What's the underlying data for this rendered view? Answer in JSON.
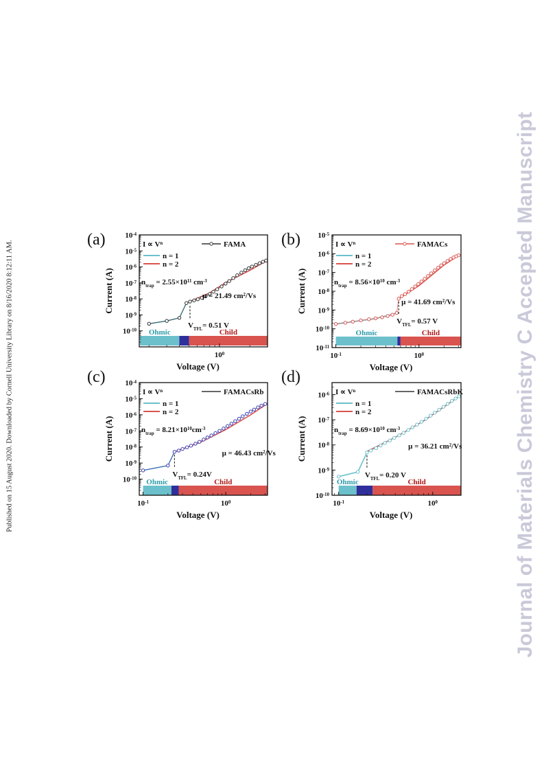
{
  "side_note": "Published on 15 August 2020. Downloaded by Cornell University Library on 8/16/2020 8:12:11 AM.",
  "watermark": "Journal of Materials Chemistry C Accepted Manuscript",
  "common": {
    "law_label": "I ∝ V",
    "law_exp": "n",
    "n1_label": "n = 1",
    "n2_label": "n = 2",
    "ylabel": "Current (A)",
    "xlabel": "Voltage (V)",
    "ohmic_label": "Ohmic",
    "tfl_label": "TFL",
    "child_label": "Child",
    "colors": {
      "n1": "#6cc0cc",
      "n2": "#d9534f",
      "ohmic": "#6cc0cc",
      "tfl": "#2f2f9c",
      "child": "#d9534f"
    }
  },
  "chart_data": [
    {
      "panel": "(a)",
      "type": "line",
      "legend": "FAMA",
      "legend_color": "#333333",
      "marker_color": "#333333",
      "xscale": "log",
      "yscale": "log",
      "xlim": [
        0.16,
        3.0
      ],
      "ylim": [
        1e-11,
        0.0001
      ],
      "xticks": [
        {
          "v": 1,
          "b": "10",
          "e": "0"
        }
      ],
      "yticks": [
        {
          "v": 0.0001,
          "b": "10",
          "e": "-4"
        },
        {
          "v": 1e-05,
          "b": "10",
          "e": "-5"
        },
        {
          "v": 1e-06,
          "b": "10",
          "e": "-6"
        },
        {
          "v": 1e-07,
          "b": "10",
          "e": "-7"
        },
        {
          "v": 1e-08,
          "b": "10",
          "e": "-8"
        },
        {
          "v": 1e-09,
          "b": "10",
          "e": "-9"
        },
        {
          "v": 1e-10,
          "b": "10",
          "e": "-10"
        }
      ],
      "regions": {
        "ohmic": [
          0.16,
          0.4
        ],
        "tfl": [
          0.4,
          0.5
        ],
        "child": [
          0.5,
          3.0
        ]
      },
      "ntrap": {
        "pre": "n",
        "sub": "trap",
        "mid": " = 2.55×10",
        "sup": "11",
        "post": " cm",
        "sup2": "-3"
      },
      "mu": {
        "pre": "μ = 21.49 cm",
        "sup": "2",
        "post": "/Vs"
      },
      "vtfl": {
        "pre": "V",
        "sub": "TFL",
        "post": "= 0.51 V",
        "x": 0.51
      },
      "series": [
        {
          "fit": "n1",
          "x": [
            0.2,
            0.3,
            0.4,
            0.47,
            0.51
          ],
          "y": [
            2.8e-10,
            4.2e-10,
            6.5e-10,
            5.5e-09,
            6.8e-09
          ]
        },
        {
          "fit": "n2",
          "x": [
            0.51,
            0.8,
            1.2,
            2.0,
            3.0
          ],
          "y": [
            7e-09,
            2.4e-08,
            1.2e-07,
            6e-07,
            2.6e-06
          ]
        }
      ],
      "points": {
        "x": [
          0.2,
          0.3,
          0.4,
          0.47,
          0.51,
          0.56,
          0.61,
          0.67,
          0.73,
          0.8,
          0.87,
          0.95,
          1.05,
          1.15,
          1.25,
          1.37,
          1.5,
          1.65,
          1.8,
          1.95,
          2.1,
          2.3,
          2.5,
          2.7,
          2.9
        ],
        "y": [
          2.8e-10,
          4.2e-10,
          6.5e-10,
          5.5e-09,
          6.8e-09,
          8e-09,
          9.5e-09,
          1.15e-08,
          1.5e-08,
          2e-08,
          2.8e-08,
          4e-08,
          6e-08,
          9e-08,
          1.3e-07,
          2e-07,
          3e-07,
          4.4e-07,
          6.2e-07,
          8.2e-07,
          1.05e-06,
          1.35e-06,
          1.7e-06,
          2.1e-06,
          2.5e-06
        ]
      },
      "tfl_jump": {
        "x": 0.47,
        "y1": 6.5e-10,
        "y2": 5.5e-09
      }
    },
    {
      "panel": "(b)",
      "type": "line",
      "legend": "FAMACs",
      "legend_color": "#d9534f",
      "marker_color": "#d9534f",
      "xscale": "log",
      "yscale": "log",
      "xlim": [
        0.09,
        3.2
      ],
      "ylim": [
        1e-11,
        1e-05
      ],
      "xticks": [
        {
          "v": 0.1,
          "b": "10",
          "e": "-1"
        },
        {
          "v": 1,
          "b": "10",
          "e": "0"
        }
      ],
      "yticks": [
        {
          "v": 1e-05,
          "b": "10",
          "e": "-5"
        },
        {
          "v": 1e-06,
          "b": "10",
          "e": "-6"
        },
        {
          "v": 1e-07,
          "b": "10",
          "e": "-7"
        },
        {
          "v": 1e-08,
          "b": "10",
          "e": "-8"
        },
        {
          "v": 1e-09,
          "b": "10",
          "e": "-9"
        },
        {
          "v": 1e-10,
          "b": "10",
          "e": "-10"
        },
        {
          "v": 1e-11,
          "b": "10",
          "e": "-11"
        }
      ],
      "regions": {
        "ohmic": [
          0.1,
          0.55
        ],
        "tfl": [
          0.55,
          0.6
        ],
        "child": [
          0.6,
          3.2
        ]
      },
      "ntrap": {
        "pre": "n",
        "sub": "trap",
        "mid": " = 8.56×10",
        "sup": "10",
        "post": " cm",
        "sup2": "-3"
      },
      "mu": {
        "pre": "μ = 41.69 cm",
        "sup": "2",
        "post": "/Vs"
      },
      "vtfl": {
        "pre": "V",
        "sub": "TFL",
        "post": "= 0.57 V",
        "x": 0.57
      },
      "series": [
        {
          "fit": "n1",
          "x": [
            0.1,
            0.3,
            0.55
          ],
          "y": [
            1.8e-10,
            3.5e-10,
            7e-10
          ]
        },
        {
          "fit": "n2",
          "x": [
            0.57,
            1.0,
            2.0,
            3.0
          ],
          "y": [
            4e-09,
            2e-08,
            2.5e-07,
            8e-07
          ]
        }
      ],
      "points": {
        "x": [
          0.1,
          0.13,
          0.16,
          0.2,
          0.25,
          0.3,
          0.36,
          0.42,
          0.48,
          0.54,
          0.57,
          0.62,
          0.68,
          0.75,
          0.82,
          0.9,
          0.98,
          1.07,
          1.17,
          1.28,
          1.4,
          1.55,
          1.7,
          1.85,
          2.0,
          2.2,
          2.4,
          2.6,
          2.8,
          3.0
        ],
        "y": [
          1.8e-10,
          2.1e-10,
          2.4e-10,
          2.8e-10,
          3.2e-10,
          3.6e-10,
          4.1e-10,
          4.8e-10,
          5.6e-10,
          7e-10,
          4e-09,
          5.5e-09,
          7e-09,
          9.5e-09,
          1.3e-08,
          1.8e-08,
          2.4e-08,
          3.3e-08,
          4.6e-08,
          6.4e-08,
          9e-08,
          1.3e-07,
          1.8e-07,
          2.4e-07,
          3.1e-07,
          4.1e-07,
          5.2e-07,
          6.3e-07,
          7.3e-07,
          8.2e-07
        ]
      },
      "tfl_jump": {
        "x": 0.56,
        "y1": 7e-10,
        "y2": 4e-09
      }
    },
    {
      "panel": "(c)",
      "type": "line",
      "legend": "FAMACsRb",
      "legend_color": "#333333",
      "marker_color": "#3b3bb0",
      "xscale": "log",
      "yscale": "log",
      "xlim": [
        0.09,
        3.2
      ],
      "ylim": [
        1e-11,
        0.0001
      ],
      "xticks": [
        {
          "v": 0.1,
          "b": "10",
          "e": "-1"
        },
        {
          "v": 1,
          "b": "10",
          "e": "0"
        }
      ],
      "yticks": [
        {
          "v": 0.0001,
          "b": "10",
          "e": "-4"
        },
        {
          "v": 1e-05,
          "b": "10",
          "e": "-5"
        },
        {
          "v": 1e-06,
          "b": "10",
          "e": "-6"
        },
        {
          "v": 1e-07,
          "b": "10",
          "e": "-7"
        },
        {
          "v": 1e-08,
          "b": "10",
          "e": "-8"
        },
        {
          "v": 1e-09,
          "b": "10",
          "e": "-9"
        },
        {
          "v": 1e-10,
          "b": "10",
          "e": "-10"
        }
      ],
      "regions": {
        "ohmic": [
          0.1,
          0.22
        ],
        "tfl": [
          0.22,
          0.27
        ],
        "child": [
          0.27,
          3.2
        ]
      },
      "ntrap": {
        "pre": "n",
        "sub": "trap",
        "mid": " = 8.21×10",
        "sup": "10",
        "post": "cm",
        "sup2": "-3"
      },
      "mu": {
        "pre": "μ = 46.43 cm",
        "sup": "2",
        "post": "/Vs"
      },
      "vtfl": {
        "pre": "V",
        "sub": "TFL",
        "post": "= 0.24V",
        "x": 0.24
      },
      "series": [
        {
          "fit": "n1",
          "x": [
            0.1,
            0.2,
            0.24
          ],
          "y": [
            3.5e-10,
            7e-10,
            5e-09
          ]
        },
        {
          "fit": "n2",
          "x": [
            0.24,
            0.5,
            1.0,
            2.0,
            3.2
          ],
          "y": [
            5e-09,
            2e-08,
            1.2e-07,
            1e-06,
            5e-06
          ]
        }
      ],
      "points": {
        "x": [
          0.1,
          0.2,
          0.24,
          0.27,
          0.3,
          0.34,
          0.38,
          0.43,
          0.48,
          0.54,
          0.6,
          0.67,
          0.75,
          0.84,
          0.94,
          1.05,
          1.17,
          1.3,
          1.45,
          1.6,
          1.8,
          2.0,
          2.2,
          2.45,
          2.7,
          3.0
        ],
        "y": [
          3.5e-10,
          7e-10,
          5e-09,
          6e-09,
          7.5e-09,
          9.5e-09,
          1.2e-08,
          1.6e-08,
          2.1e-08,
          2.9e-08,
          3.9e-08,
          5.2e-08,
          7.2e-08,
          1e-07,
          1.4e-07,
          2e-07,
          2.8e-07,
          4e-07,
          5.7e-07,
          8e-07,
          1.15e-06,
          1.6e-06,
          2.1e-06,
          2.9e-06,
          3.7e-06,
          4.7e-06
        ]
      },
      "tfl_jump": {
        "x": 0.22,
        "y1": 7e-10,
        "y2": 5e-09
      }
    },
    {
      "panel": "(d)",
      "type": "line",
      "legend": "FAMACsRbK",
      "legend_color": "#333333",
      "marker_color": "#6cc0cc",
      "xscale": "log",
      "yscale": "log",
      "xlim": [
        0.085,
        2.0
      ],
      "ylim": [
        1e-10,
        3e-06
      ],
      "xticks": [
        {
          "v": 0.1,
          "b": "10",
          "e": "-1"
        },
        {
          "v": 1,
          "b": "10",
          "e": "0"
        }
      ],
      "yticks": [
        {
          "v": 1e-06,
          "b": "10",
          "e": "-6"
        },
        {
          "v": 1e-07,
          "b": "10",
          "e": "-7"
        },
        {
          "v": 1e-08,
          "b": "10",
          "e": "-8"
        },
        {
          "v": 1e-09,
          "b": "10",
          "e": "-9"
        },
        {
          "v": 1e-10,
          "b": "10",
          "e": "-10"
        }
      ],
      "regions": {
        "ohmic": [
          0.1,
          0.155
        ],
        "tfl": [
          0.155,
          0.23
        ],
        "child": [
          0.23,
          2.0
        ]
      },
      "ntrap": {
        "pre": "n",
        "sub": "trap",
        "mid": " = 8.69×10",
        "sup": "10",
        "post": " cm",
        "sup2": "-3"
      },
      "mu": {
        "pre": "μ = 36.21 cm",
        "sup": "2",
        "post": "/Vs"
      },
      "vtfl": {
        "pre": "V",
        "sub": "TFL",
        "post": "= 0.20 V",
        "x": 0.2
      },
      "series": [
        {
          "fit": "n1",
          "x": [
            0.1,
            0.16,
            0.2
          ],
          "y": [
            5.5e-10,
            8.5e-10,
            5e-09
          ]
        },
        {
          "fit": "n2",
          "x": [
            0.2,
            0.4,
            0.8,
            1.4,
            1.9
          ],
          "y": [
            5.5e-09,
            2e-08,
            9e-08,
            3.8e-07,
            8.5e-07
          ]
        }
      ],
      "points": {
        "x": [
          0.1,
          0.16,
          0.2,
          0.22,
          0.25,
          0.28,
          0.31,
          0.35,
          0.39,
          0.44,
          0.49,
          0.55,
          0.61,
          0.68,
          0.76,
          0.85,
          0.95,
          1.05,
          1.17,
          1.3,
          1.44,
          1.6,
          1.75,
          1.9
        ],
        "y": [
          5.5e-10,
          8.5e-10,
          5e-09,
          6e-09,
          7.5e-09,
          9.5e-09,
          1.2e-08,
          1.5e-08,
          1.9e-08,
          2.4e-08,
          3e-08,
          3.9e-08,
          5e-08,
          6.4e-08,
          8.3e-08,
          1.1e-07,
          1.45e-07,
          1.9e-07,
          2.5e-07,
          3.3e-07,
          4.3e-07,
          5.6e-07,
          7e-07,
          8.5e-07
        ]
      },
      "tfl_jump": {
        "x": 0.2,
        "y1": 8.5e-10,
        "y2": 5e-09
      }
    }
  ]
}
